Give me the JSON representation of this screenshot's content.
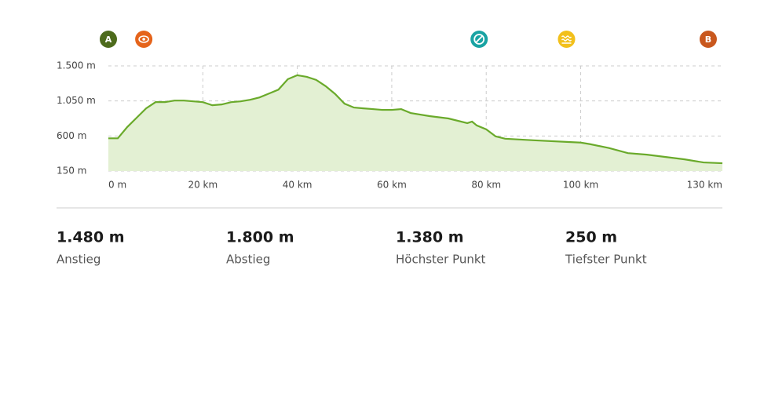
{
  "chart_data": {
    "type": "area",
    "color": "#6aaa2b",
    "fill": "#e3f0d3",
    "x": [
      0,
      2,
      4,
      6,
      8,
      10,
      12,
      14,
      16,
      18,
      20,
      22,
      24,
      26,
      28,
      30,
      32,
      34,
      36,
      38,
      40,
      42,
      44,
      46,
      48,
      50,
      52,
      54,
      56,
      58,
      60,
      62,
      64,
      68,
      72,
      76,
      77,
      78,
      80,
      82,
      84,
      90,
      100,
      102,
      106,
      110,
      114,
      118,
      122,
      126,
      130
    ],
    "values": [
      570,
      570,
      715,
      835,
      955,
      1035,
      1035,
      1055,
      1055,
      1045,
      1035,
      995,
      1005,
      1035,
      1045,
      1065,
      1095,
      1145,
      1195,
      1330,
      1380,
      1360,
      1320,
      1240,
      1140,
      1015,
      965,
      955,
      945,
      935,
      935,
      945,
      895,
      855,
      825,
      765,
      785,
      735,
      685,
      595,
      565,
      545,
      515,
      495,
      445,
      380,
      360,
      330,
      300,
      260,
      250
    ],
    "xlim": [
      0,
      130
    ],
    "ylim": [
      150,
      1500
    ],
    "xticks": [
      {
        "value": 0,
        "label": "0 m"
      },
      {
        "value": 20,
        "label": "20 km"
      },
      {
        "value": 40,
        "label": "40 km"
      },
      {
        "value": 60,
        "label": "60 km"
      },
      {
        "value": 80,
        "label": "80 km"
      },
      {
        "value": 100,
        "label": "100 km"
      },
      {
        "value": 130,
        "label": "130 km"
      }
    ],
    "yticks": [
      {
        "value": 150,
        "label": "150 m"
      },
      {
        "value": 600,
        "label": "600 m"
      },
      {
        "value": 1050,
        "label": "1.050 m"
      },
      {
        "value": 1500,
        "label": "1.500 m"
      }
    ],
    "grid": true,
    "markers": [
      {
        "x": 0,
        "label": "A",
        "color": "#4d6b1c"
      },
      {
        "x": 7.5,
        "color": "#e5641b"
      },
      {
        "x": 78.5,
        "color": "#19a3a3"
      },
      {
        "x": 97,
        "color": "#f2c01c"
      },
      {
        "x": 127,
        "label": "B",
        "color": "#c9581e"
      }
    ]
  },
  "stats": [
    {
      "value": "1.480 m",
      "label": "Anstieg"
    },
    {
      "value": "1.800 m",
      "label": "Abstieg"
    },
    {
      "value": "1.380 m",
      "label": "Höchster Punkt"
    },
    {
      "value": "250 m",
      "label": "Tiefster Punkt"
    }
  ]
}
